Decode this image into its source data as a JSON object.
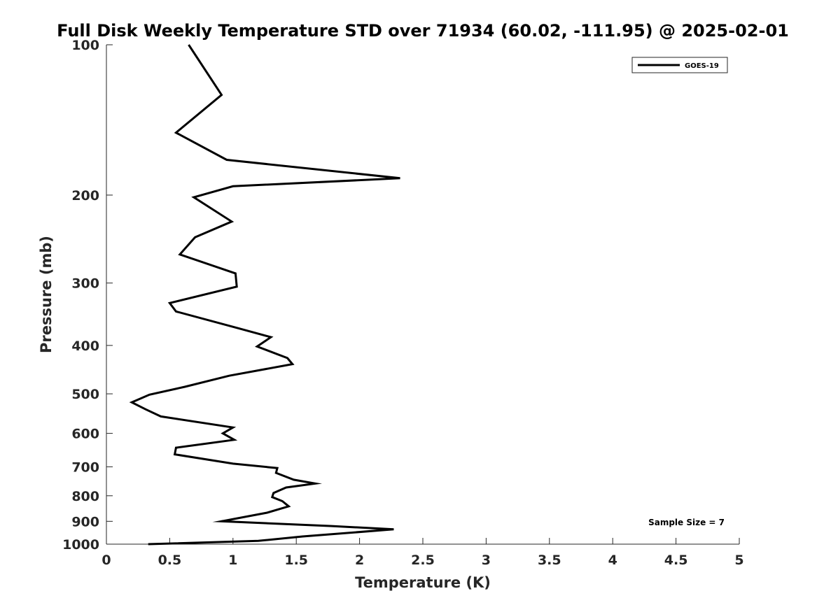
{
  "chart_data": {
    "type": "line",
    "title": "Full Disk Weekly Temperature STD over 71934 (60.02, -111.95) @ 2025-02-01",
    "xlabel": "Temperature (K)",
    "ylabel": "Pressure (mb)",
    "xlim": [
      0,
      5
    ],
    "ylim": [
      100,
      1000
    ],
    "y_scale": "log",
    "y_reversed": true,
    "x_ticks": [
      0,
      0.5,
      1,
      1.5,
      2,
      2.5,
      3,
      3.5,
      4,
      4.5,
      5
    ],
    "x_tick_labels": [
      "0",
      "0.5",
      "1",
      "1.5",
      "2",
      "2.5",
      "3",
      "3.5",
      "4",
      "4.5",
      "5"
    ],
    "y_ticks": [
      100,
      200,
      300,
      400,
      500,
      600,
      700,
      800,
      900,
      1000
    ],
    "y_tick_labels": [
      "100",
      "200",
      "300",
      "400",
      "500",
      "600",
      "700",
      "800",
      "900",
      "1000"
    ],
    "grid": false,
    "legend_position": "top-right",
    "annotation": "Sample Size = 7",
    "series": [
      {
        "name": "GOES-19",
        "color": "#000000",
        "points": [
          [
            0.65,
            100
          ],
          [
            0.91,
            126
          ],
          [
            0.55,
            150
          ],
          [
            0.95,
            170
          ],
          [
            2.32,
            185
          ],
          [
            1.0,
            192
          ],
          [
            0.69,
            202
          ],
          [
            0.99,
            226
          ],
          [
            0.7,
            243
          ],
          [
            0.58,
            263
          ],
          [
            1.02,
            287
          ],
          [
            1.03,
            305
          ],
          [
            0.5,
            329
          ],
          [
            0.55,
            342
          ],
          [
            1.05,
            370
          ],
          [
            1.3,
            385
          ],
          [
            1.19,
            402
          ],
          [
            1.43,
            424
          ],
          [
            1.47,
            436
          ],
          [
            0.97,
            460
          ],
          [
            0.62,
            484
          ],
          [
            0.34,
            502
          ],
          [
            0.2,
            520
          ],
          [
            0.31,
            537
          ],
          [
            0.43,
            555
          ],
          [
            1.0,
            584
          ],
          [
            0.92,
            600
          ],
          [
            1.01,
            618
          ],
          [
            0.55,
            641
          ],
          [
            0.54,
            661
          ],
          [
            1.0,
            690
          ],
          [
            1.35,
            704
          ],
          [
            1.34,
            720
          ],
          [
            1.48,
            743
          ],
          [
            1.65,
            756
          ],
          [
            1.42,
            770
          ],
          [
            1.32,
            790
          ],
          [
            1.31,
            805
          ],
          [
            1.39,
            820
          ],
          [
            1.44,
            840
          ],
          [
            1.27,
            865
          ],
          [
            0.91,
            900
          ],
          [
            1.78,
            920
          ],
          [
            2.27,
            934
          ],
          [
            1.55,
            965
          ],
          [
            1.2,
            985
          ],
          [
            0.33,
            1000
          ]
        ]
      }
    ]
  }
}
